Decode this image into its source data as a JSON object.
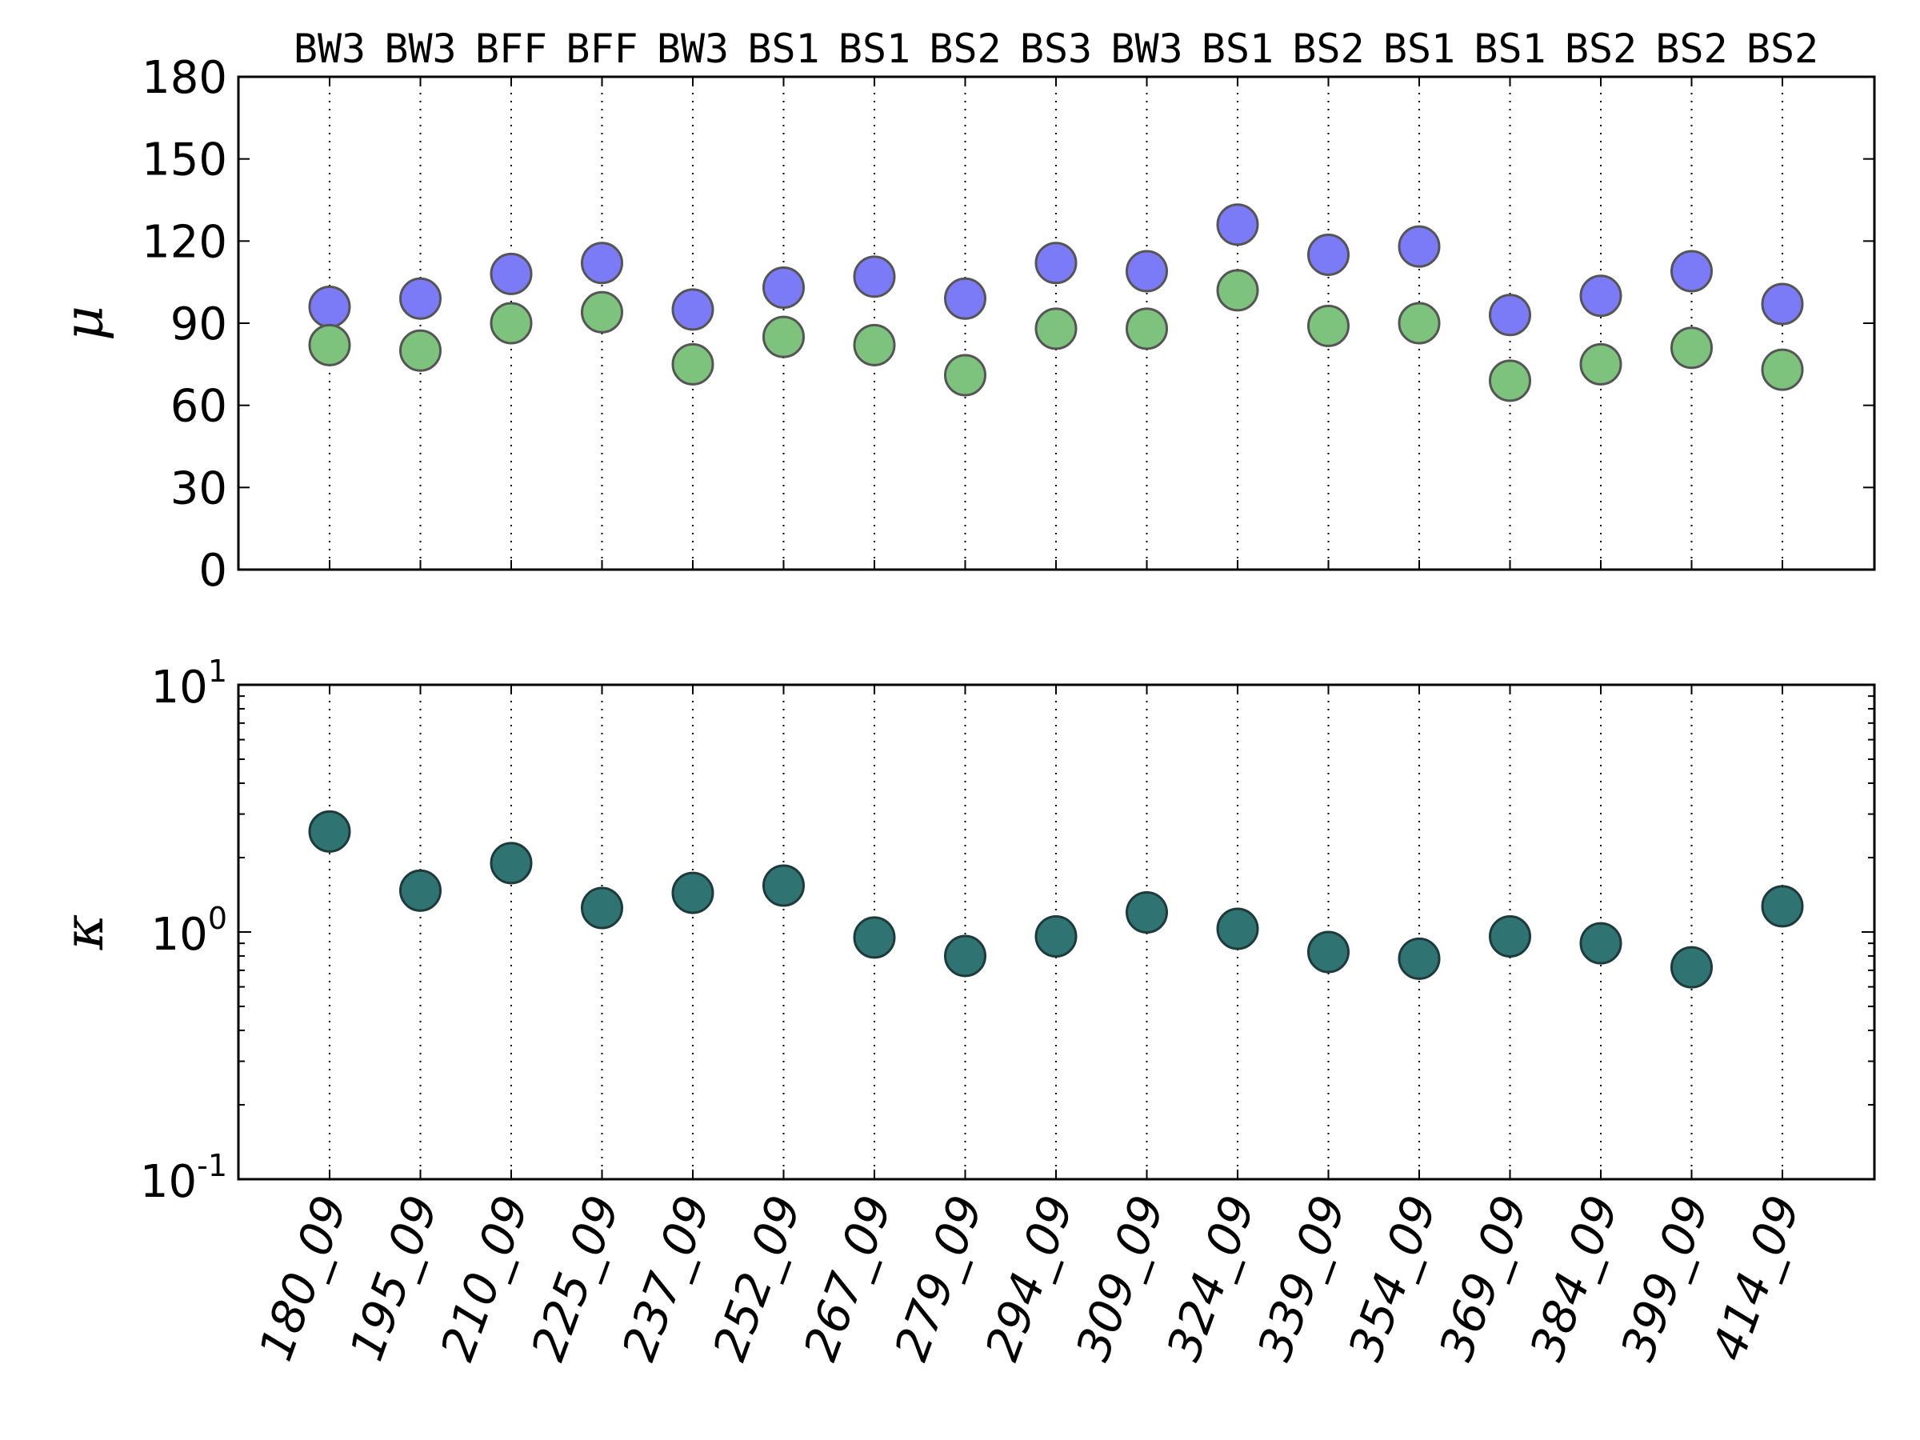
{
  "chart_data": {
    "type": "scatter",
    "categories": [
      "180_09",
      "195_09",
      "210_09",
      "225_09",
      "237_09",
      "252_09",
      "267_09",
      "279_09",
      "294_09",
      "309_09",
      "324_09",
      "339_09",
      "354_09",
      "369_09",
      "384_09",
      "399_09",
      "414_09"
    ],
    "group_labels": [
      "BW3",
      "BW3",
      "BFF",
      "BFF",
      "BW3",
      "BS1",
      "BS1",
      "BS2",
      "BS3",
      "BW3",
      "BS1",
      "BS2",
      "BS1",
      "BS1",
      "BS2",
      "BS2",
      "BS2"
    ],
    "panels": [
      {
        "id": "mu",
        "ylabel": "μ",
        "yscale": "linear",
        "ylim": [
          0,
          180
        ],
        "yticks": [
          0,
          30,
          60,
          90,
          120,
          150,
          180
        ],
        "series": [
          {
            "name": "blue",
            "color": "#7b7bf7",
            "values": [
              96,
              99,
              108,
              112,
              95,
              103,
              107,
              99,
              112,
              109,
              126,
              115,
              118,
              93,
              100,
              109,
              97
            ]
          },
          {
            "name": "green",
            "color": "#7dc27d",
            "values": [
              82,
              80,
              90,
              94,
              75,
              85,
              82,
              71,
              88,
              88,
              102,
              89,
              90,
              69,
              75,
              81,
              73
            ]
          }
        ]
      },
      {
        "id": "kappa",
        "ylabel": "κ",
        "yscale": "log",
        "ylim": [
          0.1,
          10
        ],
        "yticks": [
          {
            "base": "10",
            "exp": "-1",
            "value": 0.1
          },
          {
            "base": "10",
            "exp": "0",
            "value": 1
          },
          {
            "base": "10",
            "exp": "1",
            "value": 10
          }
        ],
        "series": [
          {
            "name": "kappa",
            "color": "#2f7373",
            "values": [
              2.55,
              1.47,
              1.9,
              1.25,
              1.44,
              1.54,
              0.95,
              0.8,
              0.96,
              1.2,
              1.03,
              0.83,
              0.78,
              0.96,
              0.9,
              0.72,
              1.27
            ]
          }
        ]
      }
    ]
  }
}
